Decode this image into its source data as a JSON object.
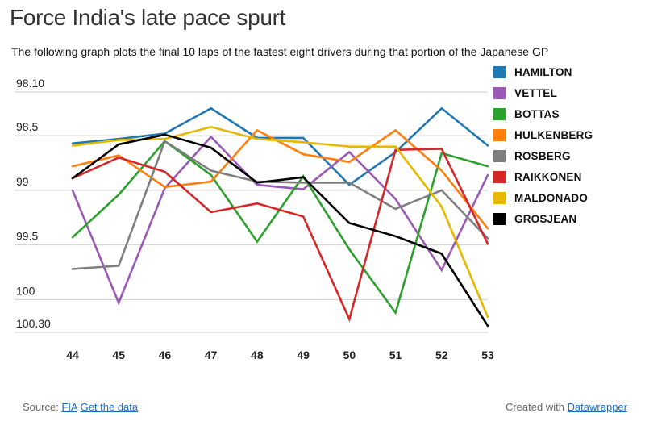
{
  "title": "Force India's late pace spurt",
  "subtitle": "The following graph plots the final 10 laps of the fastest eight drivers during that portion of the Japanese GP",
  "footer": {
    "source_label": "Source:",
    "source_link": "FIA",
    "data_link": "Get the data",
    "created_label": "Created with",
    "created_link": "Datawrapper"
  },
  "chart_data": {
    "type": "line",
    "title": "Force India's late pace spurt",
    "x": [
      44,
      45,
      46,
      47,
      48,
      49,
      50,
      51,
      52,
      53
    ],
    "xlabel": "",
    "ylabel": "",
    "y_reversed": true,
    "ylim": [
      98.1,
      100.3
    ],
    "y_ticks": [
      {
        "value": 98.1,
        "label": "98.10"
      },
      {
        "value": 98.5,
        "label": "98.5"
      },
      {
        "value": 99.0,
        "label": "99"
      },
      {
        "value": 99.5,
        "label": "99.5"
      },
      {
        "value": 100.0,
        "label": "100"
      },
      {
        "value": 100.3,
        "label": "100.30"
      }
    ],
    "grid": true,
    "legend": "right",
    "series": [
      {
        "name": "HAMILTON",
        "color": "#1f77b4",
        "values": [
          98.57,
          98.53,
          98.48,
          98.25,
          98.52,
          98.52,
          98.95,
          98.65,
          98.25,
          98.59
        ]
      },
      {
        "name": "VETTEL",
        "color": "#9b59b6",
        "values": [
          99.0,
          100.03,
          98.98,
          98.51,
          98.95,
          98.99,
          98.65,
          99.08,
          99.73,
          98.86
        ]
      },
      {
        "name": "BOTTAS",
        "color": "#2ca02c",
        "values": [
          99.43,
          99.04,
          98.55,
          98.86,
          99.47,
          98.87,
          99.54,
          100.12,
          98.66,
          98.78
        ]
      },
      {
        "name": "HULKENBERG",
        "color": "#ff7f0e",
        "values": [
          98.78,
          98.68,
          98.97,
          98.92,
          98.45,
          98.67,
          98.74,
          98.45,
          98.82,
          99.35
        ]
      },
      {
        "name": "ROSBERG",
        "color": "#7f7f7f",
        "values": [
          99.72,
          99.69,
          98.55,
          98.82,
          98.92,
          98.93,
          98.93,
          99.17,
          99.0,
          99.44
        ]
      },
      {
        "name": "RAIKKONEN",
        "color": "#d62728",
        "values": [
          98.89,
          98.7,
          98.83,
          99.2,
          99.12,
          99.24,
          100.18,
          98.63,
          98.62,
          99.49
        ]
      },
      {
        "name": "MALDONADO",
        "color": "#e6b800",
        "values": [
          98.59,
          98.54,
          98.53,
          98.42,
          98.53,
          98.56,
          98.6,
          98.6,
          99.15,
          100.16
        ]
      },
      {
        "name": "GROSJEAN",
        "color": "#000000",
        "values": [
          98.89,
          98.58,
          98.49,
          98.61,
          98.93,
          98.88,
          99.3,
          99.42,
          99.58,
          100.24
        ]
      }
    ]
  }
}
